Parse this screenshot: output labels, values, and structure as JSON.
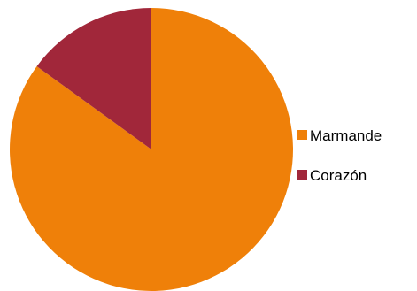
{
  "chart_data": {
    "type": "pie",
    "title": "",
    "labels": [
      "Marmande",
      "Corazón"
    ],
    "values": [
      85,
      15
    ],
    "colors": [
      "#EF8009",
      "#A1273A"
    ],
    "start_angle_deg": 0,
    "direction": "clockwise",
    "legend": {
      "position": "right",
      "entries": [
        "Marmande",
        "Corazón"
      ]
    }
  }
}
